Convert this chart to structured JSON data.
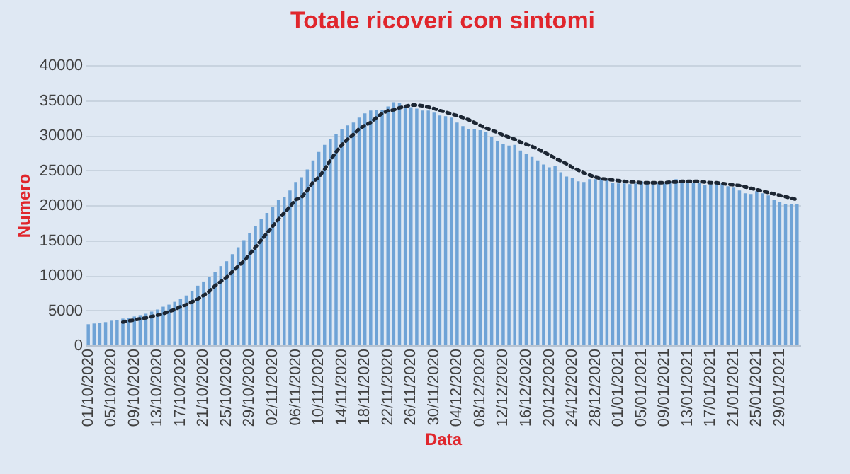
{
  "chart_data": {
    "type": "bar",
    "title": "Totale ricoveri con sintomi",
    "xlabel": "Data",
    "ylabel": "Numero",
    "ylim": [
      0,
      40000
    ],
    "yticks": [
      0,
      5000,
      10000,
      15000,
      20000,
      25000,
      30000,
      35000,
      40000
    ],
    "grid": "y",
    "categories": [
      "01/10/2020",
      null,
      null,
      null,
      "05/10/2020",
      null,
      null,
      null,
      "09/10/2020",
      null,
      null,
      null,
      "13/10/2020",
      null,
      null,
      null,
      "17/10/2020",
      null,
      null,
      null,
      "21/10/2020",
      null,
      null,
      null,
      "25/10/2020",
      null,
      null,
      null,
      "29/10/2020",
      null,
      null,
      null,
      "02/11/2020",
      null,
      null,
      null,
      "06/11/2020",
      null,
      null,
      null,
      "10/11/2020",
      null,
      null,
      null,
      "14/11/2020",
      null,
      null,
      null,
      "18/11/2020",
      null,
      null,
      null,
      "22/11/2020",
      null,
      null,
      null,
      "26/11/2020",
      null,
      null,
      null,
      "30/11/2020",
      null,
      null,
      null,
      "04/12/2020",
      null,
      null,
      null,
      "08/12/2020",
      null,
      null,
      null,
      "12/12/2020",
      null,
      null,
      null,
      "16/12/2020",
      null,
      null,
      null,
      "20/12/2020",
      null,
      null,
      null,
      "24/12/2020",
      null,
      null,
      null,
      "28/12/2020",
      null,
      null,
      null,
      "01/01/2021",
      null,
      null,
      null,
      "05/01/2021",
      null,
      null,
      null,
      "09/01/2021",
      null,
      null,
      null,
      "13/01/2021",
      null,
      null,
      null,
      "17/01/2021",
      null,
      null,
      null,
      "21/01/2021",
      null,
      null,
      null,
      "25/01/2021",
      null,
      null,
      null,
      "29/01/2021",
      null,
      null,
      null
    ],
    "series": [
      {
        "color": "#6fa3d6",
        "values": [
          3000,
          3100,
          3200,
          3300,
          3500,
          3600,
          3800,
          3900,
          4100,
          4300,
          4500,
          4800,
          5100,
          5500,
          5800,
          6200,
          6600,
          7100,
          7700,
          8500,
          9100,
          9700,
          10500,
          11300,
          12000,
          13000,
          14000,
          15000,
          16000,
          17000,
          18000,
          18900,
          19800,
          20800,
          21100,
          22100,
          23300,
          24000,
          25100,
          26400,
          27600,
          28600,
          29400,
          30100,
          30900,
          31400,
          31800,
          32500,
          33100,
          33500,
          33600,
          33600,
          34100,
          34700,
          34600,
          34300,
          34000,
          33800,
          33500,
          33500,
          33200,
          32800,
          32700,
          32500,
          31800,
          31300,
          30800,
          30900,
          30700,
          30400,
          29700,
          29100,
          28700,
          28500,
          28600,
          27800,
          27300,
          26900,
          26400,
          25800,
          25400,
          25600,
          24700,
          24100,
          23900,
          23400,
          23300,
          23700,
          23700,
          23900,
          23600,
          23200,
          23100,
          23100,
          23000,
          23100,
          23400,
          23300,
          23200,
          23100,
          23100,
          23400,
          23700,
          23400,
          23300,
          23200,
          23200,
          22900,
          23000,
          23300,
          23100,
          22700,
          22500,
          22100,
          21700,
          21600,
          22000,
          21700,
          21400,
          20800,
          20400,
          20200,
          20100,
          20100
        ]
      },
      {
        "type": "line",
        "color": "#1c2633",
        "line_style": "dotted",
        "values": [
          null,
          null,
          null,
          null,
          null,
          null,
          3300,
          3500,
          3600,
          3800,
          3900,
          4100,
          4300,
          4500,
          4800,
          5100,
          5500,
          5800,
          6200,
          6600,
          7100,
          7700,
          8500,
          9100,
          9700,
          10500,
          11300,
          12000,
          13000,
          14000,
          15000,
          16000,
          17000,
          18000,
          18900,
          19800,
          20800,
          21100,
          22100,
          23300,
          24000,
          25100,
          26400,
          27600,
          28600,
          29400,
          30100,
          30900,
          31400,
          31800,
          32500,
          33100,
          33500,
          33600,
          33900,
          34100,
          34300,
          34300,
          34200,
          34000,
          33800,
          33500,
          33300,
          33000,
          32800,
          32500,
          32200,
          31800,
          31400,
          31000,
          30700,
          30400,
          30000,
          29700,
          29400,
          29000,
          28700,
          28400,
          28000,
          27600,
          27200,
          26700,
          26300,
          25900,
          25400,
          25000,
          24600,
          24300,
          24000,
          23800,
          23700,
          23600,
          23500,
          23400,
          23300,
          23300,
          23200,
          23200,
          23200,
          23200,
          23200,
          23300,
          23300,
          23400,
          23400,
          23400,
          23400,
          23300,
          23200,
          23200,
          23100,
          23000,
          22900,
          22800,
          22600,
          22400,
          22200,
          22000,
          21800,
          21600,
          21400,
          21200,
          21000,
          20800
        ]
      }
    ]
  }
}
